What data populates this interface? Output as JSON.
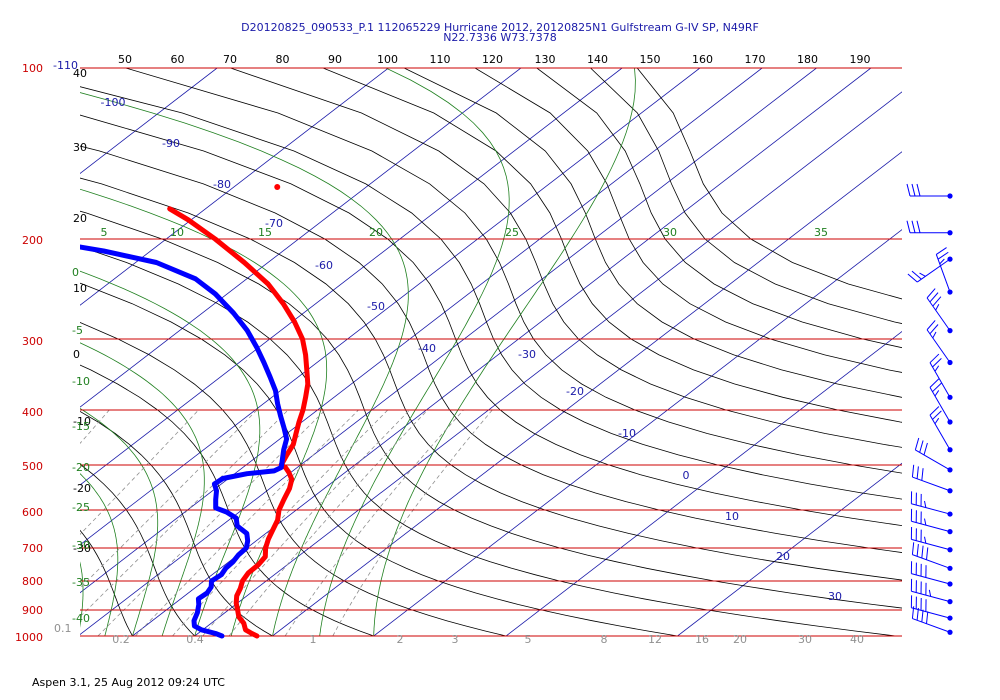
{
  "header": {
    "line1": "D20120825_090533_P.1 112065229 Hurricane 2012, 20120825N1 Gulfstream G-IV SP, N49RF",
    "line2": "N22.7336 W73.7378"
  },
  "footer": "Aspen 3.1, 25 Aug 2012  09:24 UTC",
  "chart_data": {
    "type": "line",
    "title": "D20120825_090533_P.1 112065229 Hurricane 2012, 20120825N1 Gulfstream G-IV SP, N49RF",
    "subtitle": "N22.7336 W73.7378",
    "pressure_ticks": [
      "100",
      "200",
      "300",
      "400",
      "500",
      "600",
      "700",
      "800",
      "900",
      "1000"
    ],
    "top_ticks": [
      "50",
      "60",
      "70",
      "80",
      "90",
      "100",
      "110",
      "120",
      "130",
      "140",
      "150",
      "160",
      "170",
      "180",
      "190"
    ],
    "left_black_labels": [
      "40",
      "30",
      "20",
      "10",
      "0",
      "-10",
      "-20",
      "-30"
    ],
    "left_green_labels": [
      "0",
      "-5",
      "-10",
      "-15",
      "-20",
      "-25",
      "-30",
      "-35",
      "-40"
    ],
    "left_extra": [
      "-110",
      "0.1"
    ],
    "isotherm_labels": [
      "-100",
      "-90",
      "-80",
      "-70",
      "-60",
      "-50",
      "-40",
      "-30",
      "-20",
      "-10",
      "0",
      "10",
      "20",
      "30"
    ],
    "dry_adiabat_labels": [
      "5",
      "10",
      "15",
      "20",
      "25",
      "30",
      "35"
    ],
    "mixing_ratio_labels": [
      "0.2",
      "0.4",
      "1",
      "2",
      "3",
      "5",
      "8",
      "12",
      "16",
      "20",
      "30",
      "40"
    ],
    "colors": {
      "temperature": "#ff0000",
      "dewpoint": "#0000ff",
      "isobar": "#cc0000",
      "isotherm": "#1a1aa8",
      "adiabat": "#000000",
      "moist": "#208020",
      "mixing": "#909090",
      "title": "#1a1aa8"
    },
    "series": [
      {
        "values": [
          [
            1000,
            28.2
          ],
          [
            990,
            27.2
          ],
          [
            975,
            25.8
          ],
          [
            950,
            24.5
          ],
          [
            925,
            22.7
          ],
          [
            900,
            21.3
          ],
          [
            875,
            19.8
          ],
          [
            850,
            18.5
          ],
          [
            825,
            17.6
          ],
          [
            800,
            16.4
          ],
          [
            775,
            15.7
          ],
          [
            750,
            15.6
          ],
          [
            725,
            15.0
          ],
          [
            700,
            13.2
          ],
          [
            675,
            11.7
          ],
          [
            650,
            10.4
          ],
          [
            625,
            9.0
          ],
          [
            600,
            6.9
          ],
          [
            575,
            5.3
          ],
          [
            550,
            3.7
          ],
          [
            530,
            1.9
          ],
          [
            515,
            -0.4
          ],
          [
            505,
            -2.2
          ],
          [
            500,
            -3.6
          ],
          [
            480,
            -5.0
          ],
          [
            460,
            -6.3
          ],
          [
            440,
            -8.4
          ],
          [
            420,
            -10.5
          ],
          [
            400,
            -12.5
          ],
          [
            380,
            -14.8
          ],
          [
            360,
            -17.2
          ],
          [
            340,
            -20.1
          ],
          [
            320,
            -23.0
          ],
          [
            300,
            -26.1
          ],
          [
            280,
            -29.7
          ],
          [
            260,
            -33.5
          ],
          [
            240,
            -37.5
          ],
          [
            220,
            -42.0
          ],
          [
            200,
            -46.6
          ],
          [
            185,
            -50.2
          ],
          [
            177,
            -52.3
          ]
        ]
      },
      {
        "values": [
          [
            1000,
            23.8
          ],
          [
            990,
            22.5
          ],
          [
            975,
            19.8
          ],
          [
            960,
            18.0
          ],
          [
            940,
            16.9
          ],
          [
            910,
            15.8
          ],
          [
            880,
            14.3
          ],
          [
            860,
            13.0
          ],
          [
            840,
            13.2
          ],
          [
            820,
            12.6
          ],
          [
            800,
            11.3
          ],
          [
            780,
            11.6
          ],
          [
            760,
            10.9
          ],
          [
            740,
            10.7
          ],
          [
            720,
            10.1
          ],
          [
            700,
            9.9
          ],
          [
            680,
            8.5
          ],
          [
            660,
            6.6
          ],
          [
            640,
            3.0
          ],
          [
            620,
            0.9
          ],
          [
            605,
            -2.4
          ],
          [
            595,
            -5.4
          ],
          [
            575,
            -7.4
          ],
          [
            555,
            -9.3
          ],
          [
            540,
            -11.2
          ],
          [
            528,
            -11.0
          ],
          [
            518,
            -7.8
          ],
          [
            512,
            -3.5
          ],
          [
            505,
            -3.0
          ],
          [
            490,
            -4.6
          ],
          [
            470,
            -6.8
          ],
          [
            450,
            -8.8
          ],
          [
            430,
            -11.8
          ],
          [
            410,
            -14.9
          ],
          [
            390,
            -17.9
          ],
          [
            370,
            -20.7
          ],
          [
            350,
            -23.9
          ],
          [
            330,
            -27.1
          ],
          [
            310,
            -30.3
          ],
          [
            290,
            -33.6
          ],
          [
            270,
            -37.2
          ],
          [
            250,
            -41.0
          ],
          [
            235,
            -44.2
          ],
          [
            220,
            -48.6
          ],
          [
            210,
            -53.0
          ],
          [
            200,
            -58.0
          ]
        ]
      }
    ],
    "isolated_point": {
      "p": 162,
      "t": -47
    },
    "wind_barbs": [
      {
        "p": 168,
        "spd": 30,
        "dir": 270
      },
      {
        "p": 195,
        "spd": 30,
        "dir": 270
      },
      {
        "p": 217,
        "spd": 25,
        "dir": 235
      },
      {
        "p": 248,
        "spd": 25,
        "dir": 340
      },
      {
        "p": 290,
        "spd": 35,
        "dir": 325
      },
      {
        "p": 330,
        "spd": 25,
        "dir": 325
      },
      {
        "p": 380,
        "spd": 25,
        "dir": 330
      },
      {
        "p": 420,
        "spd": 25,
        "dir": 330
      },
      {
        "p": 470,
        "spd": 25,
        "dir": 330
      },
      {
        "p": 510,
        "spd": 30,
        "dir": 300
      },
      {
        "p": 555,
        "spd": 30,
        "dir": 290
      },
      {
        "p": 610,
        "spd": 35,
        "dir": 285
      },
      {
        "p": 655,
        "spd": 35,
        "dir": 285
      },
      {
        "p": 705,
        "spd": 35,
        "dir": 285
      },
      {
        "p": 760,
        "spd": 40,
        "dir": 290
      },
      {
        "p": 810,
        "spd": 40,
        "dir": 285
      },
      {
        "p": 870,
        "spd": 45,
        "dir": 285
      },
      {
        "p": 930,
        "spd": 40,
        "dir": 285
      },
      {
        "p": 985,
        "spd": 40,
        "dir": 290
      }
    ]
  }
}
